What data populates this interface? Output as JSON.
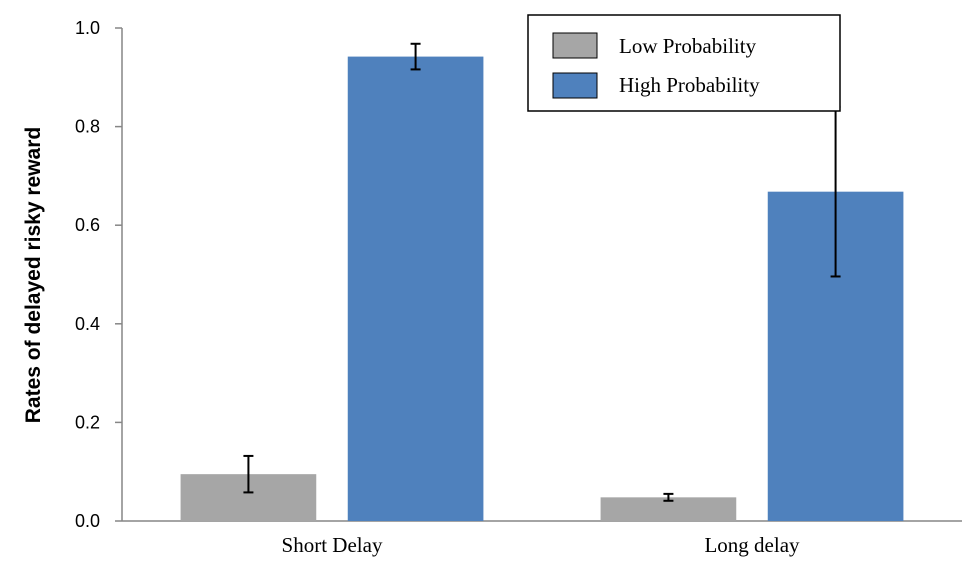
{
  "chart_data": {
    "type": "bar",
    "title": "",
    "xlabel": "",
    "ylabel": "Rates of delayed risky reward",
    "categories": [
      "Short Delay",
      "Long delay"
    ],
    "series": [
      {
        "name": "Low Probability",
        "color": "#A6A6A6",
        "values": [
          0.095,
          0.048
        ],
        "error": [
          0.037,
          0.007
        ]
      },
      {
        "name": "High Probability",
        "color": "#4F81BD",
        "values": [
          0.942,
          0.668
        ],
        "error": [
          0.026,
          0.172
        ]
      }
    ],
    "ylim": [
      0,
      1.0
    ],
    "yticks": [
      "0.0",
      "0.2",
      "0.4",
      "0.6",
      "0.8",
      "1.0"
    ],
    "grid": false,
    "legend": "top-right"
  }
}
